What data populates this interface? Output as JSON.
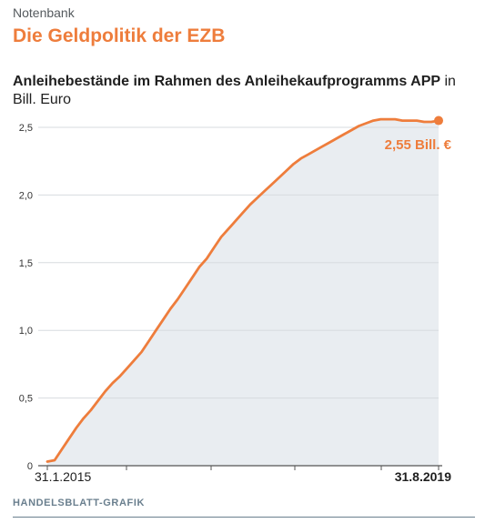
{
  "header": {
    "kicker": "Notenbank",
    "title": "Die Geldpolitik der EZB",
    "subtitle_bold": "Anleihebestände im Rahmen des Anleihekaufprogramms APP",
    "subtitle_unit": "in Bill. Euro"
  },
  "footer": {
    "source": "HANDELSBLATT-GRAFIK"
  },
  "colors": {
    "line": "#ee7d3c",
    "area": "#e9edf1",
    "grid": "#d7dbdf",
    "text": "#1f1f1f",
    "accent": "#ee7d3c"
  },
  "chart_data": {
    "type": "area",
    "title": "Anleihebestände im Rahmen des Anleihekaufprogramms APP",
    "ylabel": "in Bill. Euro",
    "ylim": [
      0,
      2.5
    ],
    "y_ticks": [
      "0",
      "0,5",
      "1,0",
      "1,5",
      "2,0",
      "2,5"
    ],
    "x_labels": [
      "31.1.2015",
      "31.8.2019"
    ],
    "grid": true,
    "end_annotation": "2,55 Bill. €",
    "series": [
      {
        "values": [
          0.03,
          0.04,
          0.12,
          0.2,
          0.28,
          0.35,
          0.41,
          0.48,
          0.55,
          0.61,
          0.66,
          0.72,
          0.78,
          0.84,
          0.92,
          1.0,
          1.08,
          1.16,
          1.23,
          1.31,
          1.39,
          1.47,
          1.53,
          1.61,
          1.69,
          1.75,
          1.81,
          1.87,
          1.93,
          1.98,
          2.03,
          2.08,
          2.13,
          2.18,
          2.23,
          2.27,
          2.3,
          2.33,
          2.36,
          2.39,
          2.42,
          2.45,
          2.48,
          2.51,
          2.53,
          2.55,
          2.56,
          2.56,
          2.56,
          2.55,
          2.55,
          2.55,
          2.54,
          2.54,
          2.55
        ]
      }
    ]
  }
}
